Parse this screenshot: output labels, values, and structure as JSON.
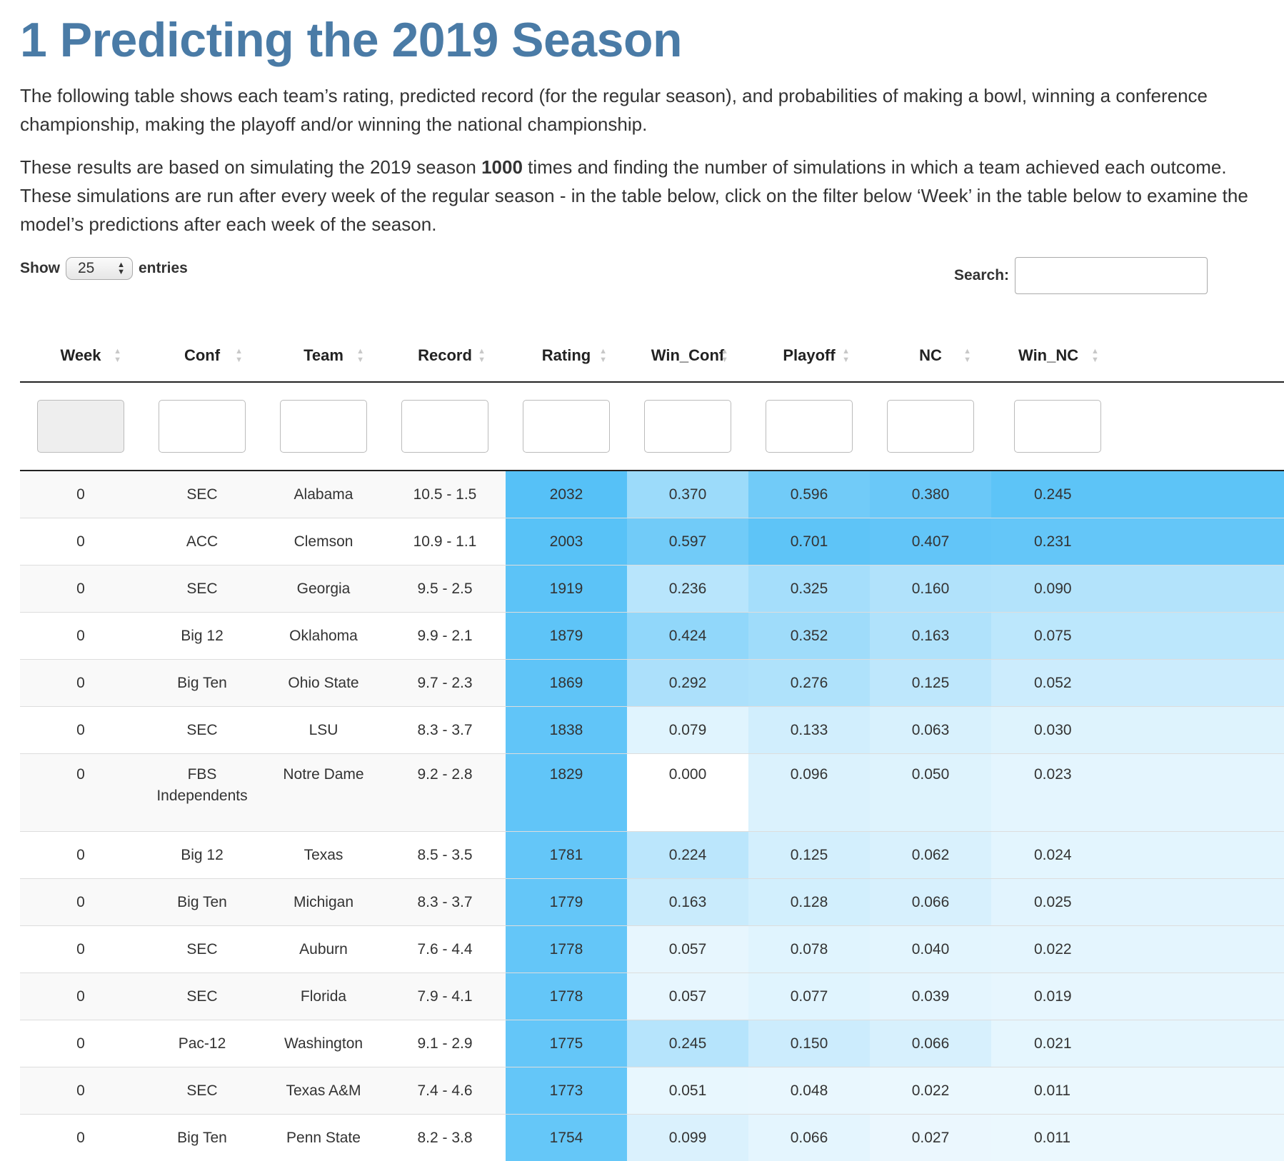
{
  "title": "1 Predicting the 2019 Season",
  "desc1": "The following table shows each team’s rating, predicted record (for the regular season), and probabilities of making a bowl, winning a conference championship, making the playoff and/or winning the national championship.",
  "desc2_before": "These results are based on simulating the 2019 season ",
  "desc2_bold": "1000",
  "desc2_after": " times and finding the number of simulations in which a team achieved each outcome. These simulations are run after every week of the regular season - in the table below, click on the filter below ‘Week’ in the table below to examine the model’s predictions after each week of the season.",
  "length": {
    "show": "Show",
    "value": "25",
    "entries": "entries"
  },
  "search": {
    "label": "Search:",
    "value": ""
  },
  "columns": [
    "Week",
    "Conf",
    "Team",
    "Record",
    "Rating",
    "Win_Conf",
    "Playoff",
    "NC",
    "Win_NC"
  ],
  "colors": {
    "title": "#4a7ba6",
    "heat_max": "#56c1f7",
    "heat_min": "#ffffff"
  },
  "rows": [
    {
      "week": "0",
      "conf": "SEC",
      "team": "Alabama",
      "record": "10.5 - 1.5",
      "rating": "2032",
      "win_conf": "0.370",
      "playoff": "0.596",
      "nc": "0.380",
      "win_nc": "0.245"
    },
    {
      "week": "0",
      "conf": "ACC",
      "team": "Clemson",
      "record": "10.9 - 1.1",
      "rating": "2003",
      "win_conf": "0.597",
      "playoff": "0.701",
      "nc": "0.407",
      "win_nc": "0.231"
    },
    {
      "week": "0",
      "conf": "SEC",
      "team": "Georgia",
      "record": "9.5 - 2.5",
      "rating": "1919",
      "win_conf": "0.236",
      "playoff": "0.325",
      "nc": "0.160",
      "win_nc": "0.090"
    },
    {
      "week": "0",
      "conf": "Big 12",
      "team": "Oklahoma",
      "record": "9.9 - 2.1",
      "rating": "1879",
      "win_conf": "0.424",
      "playoff": "0.352",
      "nc": "0.163",
      "win_nc": "0.075"
    },
    {
      "week": "0",
      "conf": "Big Ten",
      "team": "Ohio State",
      "record": "9.7 - 2.3",
      "rating": "1869",
      "win_conf": "0.292",
      "playoff": "0.276",
      "nc": "0.125",
      "win_nc": "0.052"
    },
    {
      "week": "0",
      "conf": "SEC",
      "team": "LSU",
      "record": "8.3 - 3.7",
      "rating": "1838",
      "win_conf": "0.079",
      "playoff": "0.133",
      "nc": "0.063",
      "win_nc": "0.030"
    },
    {
      "week": "0",
      "conf_line1": "FBS",
      "conf_line2": "Independents",
      "team": "Notre Dame",
      "record": "9.2 - 2.8",
      "rating": "1829",
      "win_conf": "0.000",
      "playoff": "0.096",
      "nc": "0.050",
      "win_nc": "0.023"
    },
    {
      "week": "0",
      "conf": "Big 12",
      "team": "Texas",
      "record": "8.5 - 3.5",
      "rating": "1781",
      "win_conf": "0.224",
      "playoff": "0.125",
      "nc": "0.062",
      "win_nc": "0.024"
    },
    {
      "week": "0",
      "conf": "Big Ten",
      "team": "Michigan",
      "record": "8.3 - 3.7",
      "rating": "1779",
      "win_conf": "0.163",
      "playoff": "0.128",
      "nc": "0.066",
      "win_nc": "0.025"
    },
    {
      "week": "0",
      "conf": "SEC",
      "team": "Auburn",
      "record": "7.6 - 4.4",
      "rating": "1778",
      "win_conf": "0.057",
      "playoff": "0.078",
      "nc": "0.040",
      "win_nc": "0.022"
    },
    {
      "week": "0",
      "conf": "SEC",
      "team": "Florida",
      "record": "7.9 - 4.1",
      "rating": "1778",
      "win_conf": "0.057",
      "playoff": "0.077",
      "nc": "0.039",
      "win_nc": "0.019"
    },
    {
      "week": "0",
      "conf": "Pac-12",
      "team": "Washington",
      "record": "9.1 - 2.9",
      "rating": "1775",
      "win_conf": "0.245",
      "playoff": "0.150",
      "nc": "0.066",
      "win_nc": "0.021"
    },
    {
      "week": "0",
      "conf": "SEC",
      "team": "Texas A&M",
      "record": "7.4 - 4.6",
      "rating": "1773",
      "win_conf": "0.051",
      "playoff": "0.048",
      "nc": "0.022",
      "win_nc": "0.011"
    },
    {
      "week": "0",
      "conf": "Big Ten",
      "team": "Penn State",
      "record": "8.2 - 3.8",
      "rating": "1754",
      "win_conf": "0.099",
      "playoff": "0.066",
      "nc": "0.027",
      "win_nc": "0.011"
    }
  ]
}
